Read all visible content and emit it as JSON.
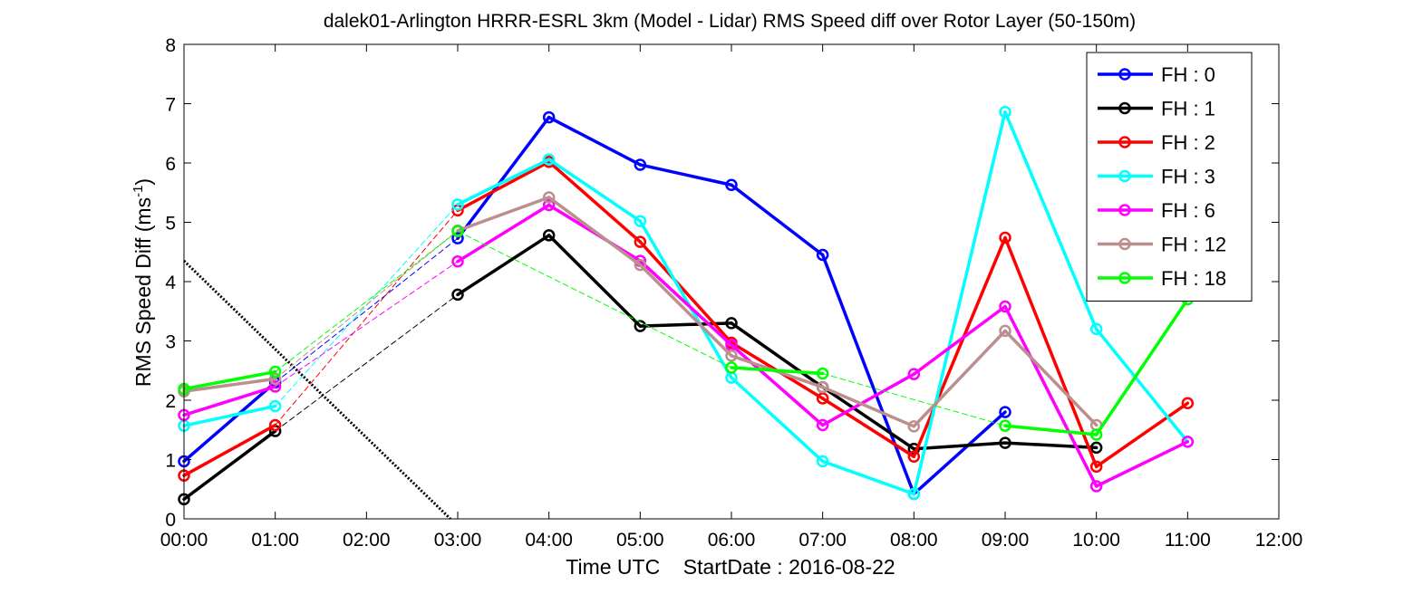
{
  "chart_data": {
    "type": "line",
    "title": "dalek01-Arlington HRRR-ESRL 3km (Model - Lidar) RMS Speed diff over Rotor Layer (50-150m)",
    "xlabel": "Time UTC    StartDate : 2016-08-22",
    "ylabel": "RMS Speed Diff (ms",
    "ylabel_sup": "-1",
    "ylabel_tail": ")",
    "xlim": [
      0,
      12
    ],
    "ylim": [
      0,
      8
    ],
    "x_tick_labels": [
      "00:00",
      "01:00",
      "02:00",
      "03:00",
      "04:00",
      "05:00",
      "06:00",
      "07:00",
      "08:00",
      "09:00",
      "10:00",
      "11:00",
      "12:00"
    ],
    "y_tick_labels": [
      "0",
      "1",
      "2",
      "3",
      "4",
      "5",
      "6",
      "7",
      "8"
    ],
    "grid": false,
    "legend_position": "top-right",
    "series": [
      {
        "name": "FH : 0",
        "color": "#0000ff",
        "x": [
          0,
          1,
          3,
          4,
          5,
          6,
          7,
          8,
          9
        ],
        "y": [
          0.97,
          2.3,
          4.73,
          6.77,
          5.97,
          5.63,
          4.45,
          0.42,
          1.8
        ]
      },
      {
        "name": "FH : 1",
        "color": "#000000",
        "x": [
          0,
          1,
          3,
          4,
          5,
          6,
          7,
          8,
          9,
          10
        ],
        "y": [
          0.33,
          1.48,
          3.78,
          4.78,
          3.25,
          3.3,
          2.22,
          1.18,
          1.28,
          1.2
        ]
      },
      {
        "name": "FH : 2",
        "color": "#ff0000",
        "x": [
          0,
          1,
          3,
          4,
          5,
          6,
          7,
          8,
          9,
          10,
          11
        ],
        "y": [
          0.73,
          1.58,
          5.2,
          6.02,
          4.67,
          2.97,
          2.03,
          1.05,
          4.74,
          0.88,
          1.95
        ]
      },
      {
        "name": "FH : 3",
        "color": "#00ffff",
        "x": [
          0,
          1,
          3,
          4,
          5,
          6,
          7,
          8,
          9,
          10,
          11
        ],
        "y": [
          1.57,
          1.9,
          5.3,
          6.06,
          5.02,
          2.38,
          0.97,
          0.42,
          6.86,
          3.2,
          1.3
        ]
      },
      {
        "name": "FH : 6",
        "color": "#ff00ff",
        "x": [
          0,
          1,
          3,
          4,
          5,
          6,
          7,
          8,
          9,
          10,
          11
        ],
        "y": [
          1.75,
          2.23,
          4.34,
          5.29,
          4.35,
          2.93,
          1.58,
          2.44,
          3.58,
          0.55,
          1.3
        ]
      },
      {
        "name": "FH : 12",
        "color": "#bc8f8f",
        "x": [
          0,
          1,
          3,
          4,
          5,
          6,
          7,
          8,
          9,
          10
        ],
        "y": [
          2.15,
          2.36,
          4.86,
          5.42,
          4.28,
          2.75,
          2.22,
          1.56,
          3.17,
          1.58
        ]
      },
      {
        "name": "FH : 18",
        "color": "#00ff00",
        "x": [
          0,
          1,
          3,
          6,
          7,
          9,
          10,
          11
        ],
        "y": [
          2.19,
          2.48,
          4.85,
          2.55,
          2.45,
          1.57,
          1.42,
          3.7
        ]
      }
    ],
    "dotted_line": {
      "color": "#000000",
      "x": [
        0,
        2.92
      ],
      "y": [
        4.35,
        0
      ]
    }
  }
}
